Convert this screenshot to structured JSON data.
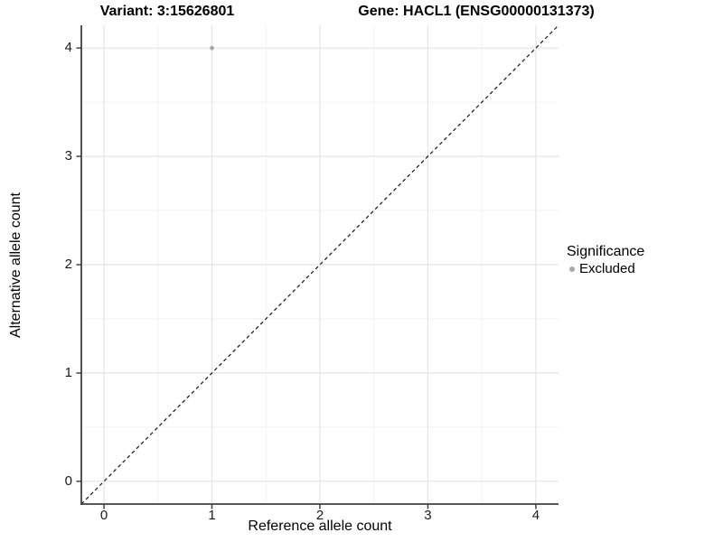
{
  "titles": {
    "variant": "Variant: 3:15626801",
    "gene": "Gene: HACL1 (ENSG00000131373)"
  },
  "chart_data": {
    "type": "scatter",
    "title_left": "Variant: 3:15626801",
    "title_right": "Gene: HACL1 (ENSG00000131373)",
    "xlabel": "Reference allele count",
    "ylabel": "Alternative allele count",
    "xlim": [
      -0.21,
      4.21
    ],
    "ylim": [
      -0.21,
      4.21
    ],
    "xticks": [
      0,
      1,
      2,
      3,
      4
    ],
    "yticks": [
      0,
      1,
      2,
      3,
      4
    ],
    "minor_ticks": [
      0.5,
      1.5,
      2.5,
      3.5
    ],
    "grid": true,
    "points": [
      {
        "x": 1,
        "y": 4,
        "significance": "Excluded"
      }
    ],
    "reference_line": {
      "type": "identity",
      "style": "dashed",
      "color": "#141414"
    },
    "legend": {
      "title": "Significance",
      "position": "right",
      "items": [
        {
          "label": "Excluded",
          "color": "#a8a8a8"
        }
      ]
    }
  },
  "colors": {
    "background": "#ffffff",
    "point": "#a8a8a8",
    "grid_major": "#e4e4e4",
    "grid_minor": "#f2f2f2",
    "axis_line": "#404040",
    "text": "#000000"
  }
}
